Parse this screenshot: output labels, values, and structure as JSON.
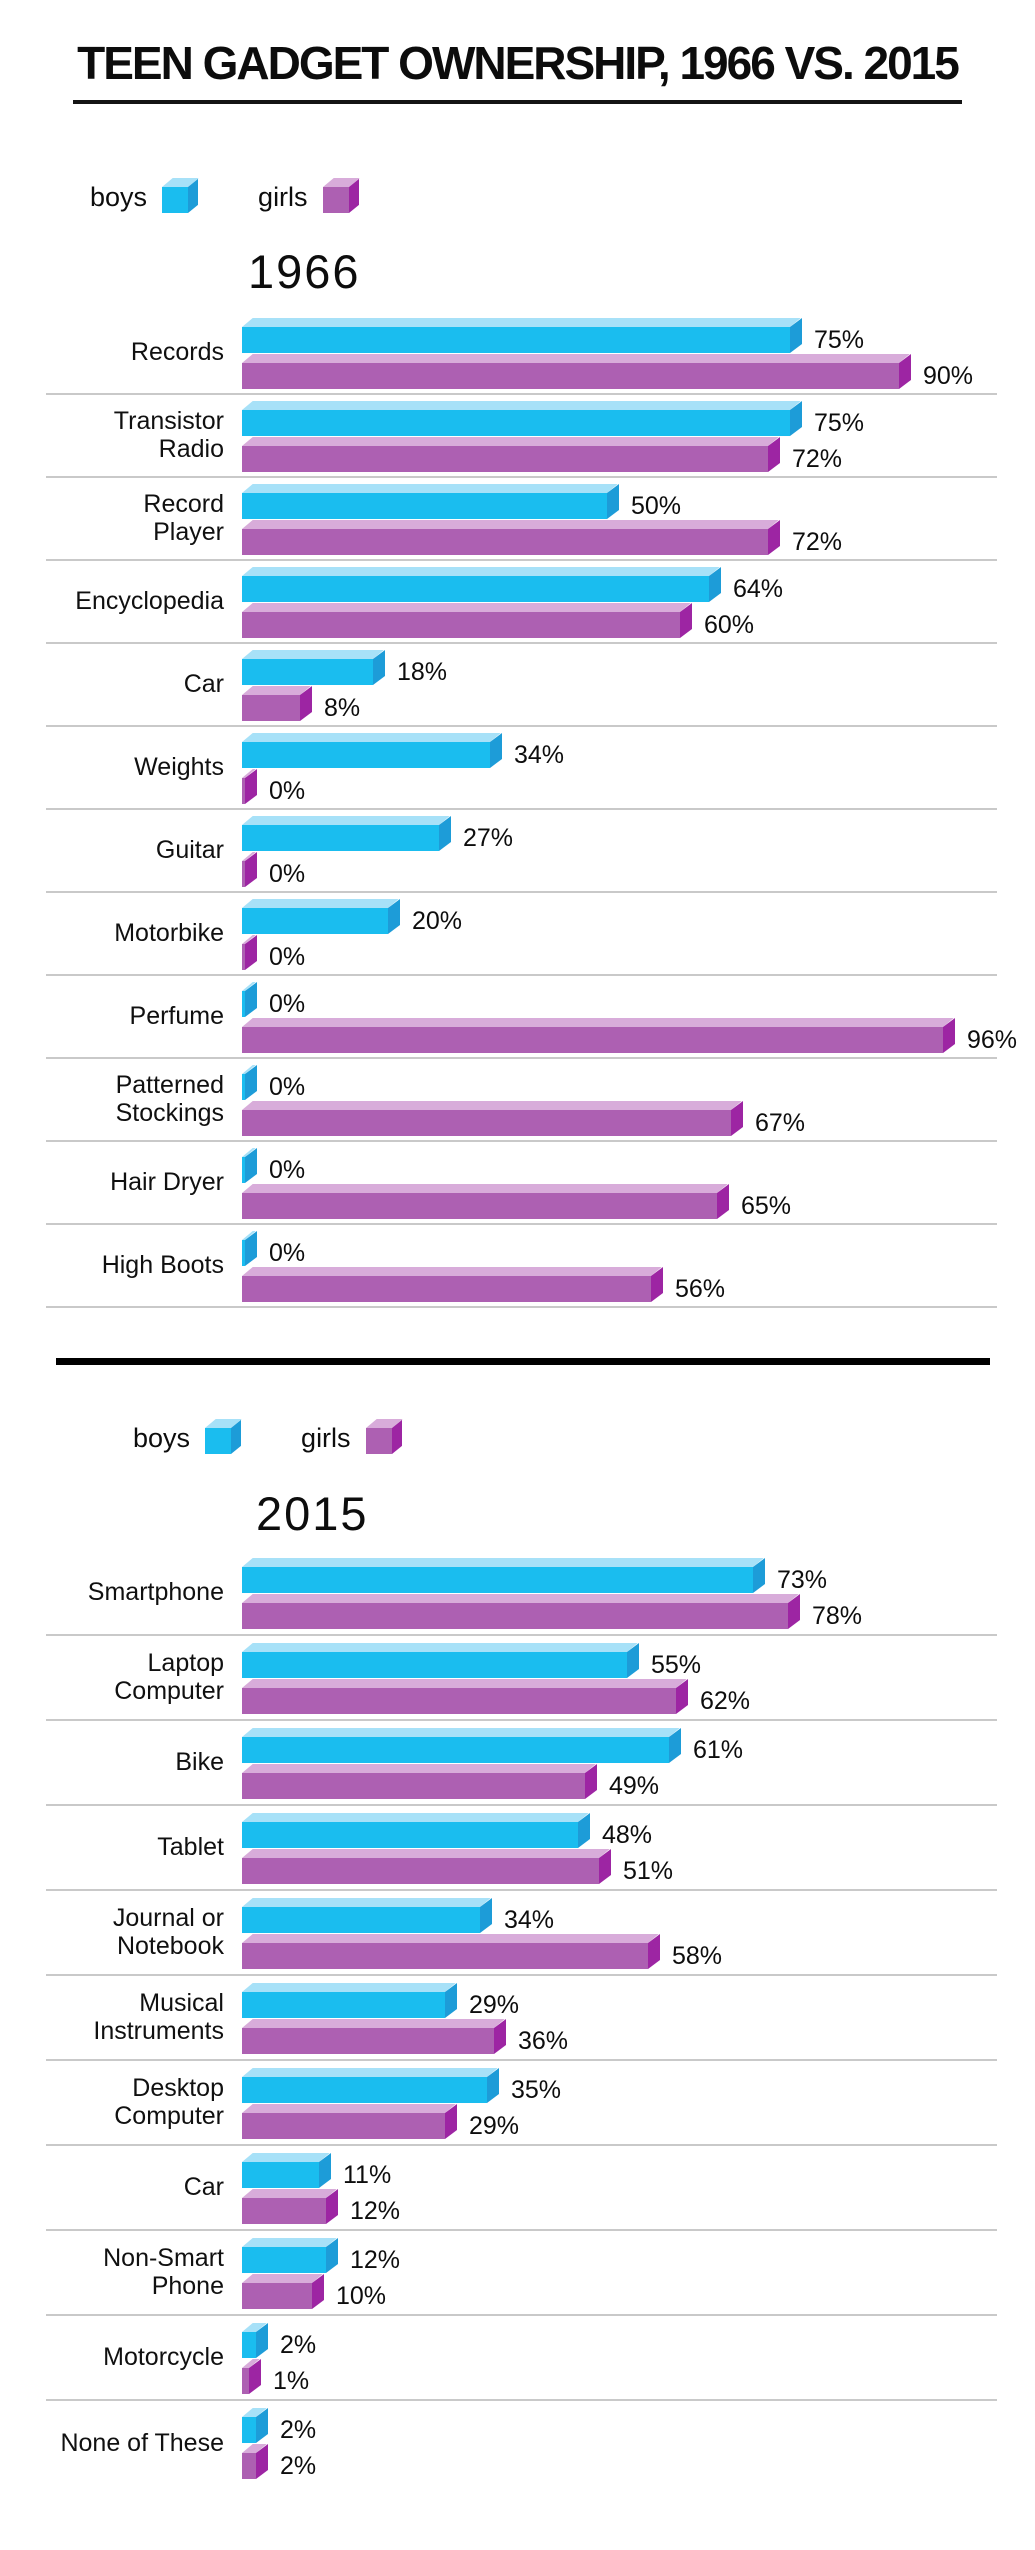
{
  "title": "TEEN GADGET OWNERSHIP, 1966 VS. 2015",
  "legend": {
    "boys_label": "boys",
    "girls_label": "girls"
  },
  "colors": {
    "boys_front": "#1abdef",
    "boys_top": "#a7e1f8",
    "boys_cap": "#1d9cd8",
    "girls_front": "#ad60b2",
    "girls_top": "#d8acda",
    "girls_cap": "#9d25a3"
  },
  "chart_data": [
    {
      "type": "bar",
      "orientation": "horizontal",
      "title": "1966",
      "unit": "%",
      "xlim": [
        0,
        100
      ],
      "legend_position": "top",
      "grid": "row-separators",
      "categories": [
        "Records",
        "Transistor\nRadio",
        "Record\nPlayer",
        "Encyclopedia",
        "Car",
        "Weights",
        "Guitar",
        "Motorbike",
        "Perfume",
        "Patterned\nStockings",
        "Hair Dryer",
        "High Boots"
      ],
      "series": [
        {
          "name": "boys",
          "values": [
            75,
            75,
            50,
            64,
            18,
            34,
            27,
            20,
            0,
            0,
            0,
            0
          ]
        },
        {
          "name": "girls",
          "values": [
            90,
            72,
            72,
            60,
            8,
            0,
            0,
            0,
            96,
            67,
            65,
            56
          ]
        }
      ]
    },
    {
      "type": "bar",
      "orientation": "horizontal",
      "title": "2015",
      "unit": "%",
      "xlim": [
        0,
        100
      ],
      "legend_position": "top",
      "grid": "row-separators",
      "categories": [
        "Smartphone",
        "Laptop\nComputer",
        "Bike",
        "Tablet",
        "Journal or\nNotebook",
        "Musical\nInstruments",
        "Desktop\nComputer",
        "Car",
        "Non-Smart\nPhone",
        "Motorcycle",
        "None of These"
      ],
      "series": [
        {
          "name": "boys",
          "values": [
            73,
            55,
            61,
            48,
            34,
            29,
            35,
            11,
            12,
            2,
            2
          ]
        },
        {
          "name": "girls",
          "values": [
            78,
            62,
            49,
            51,
            58,
            36,
            29,
            12,
            10,
            1,
            2
          ]
        }
      ]
    }
  ]
}
